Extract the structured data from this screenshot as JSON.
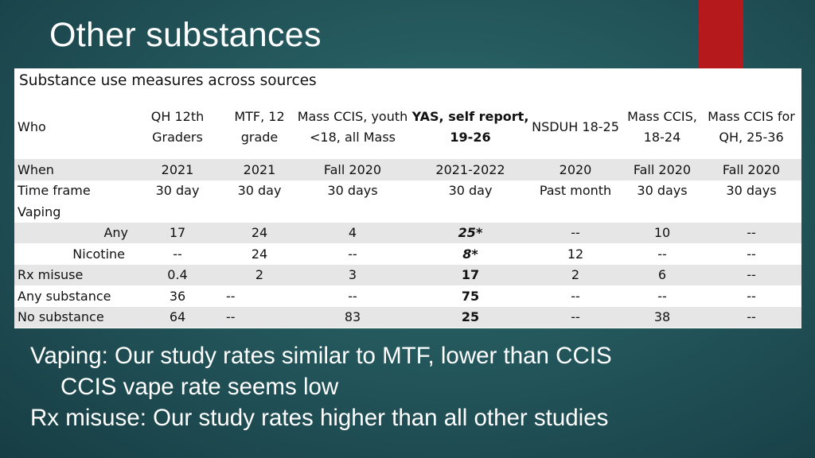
{
  "slide": {
    "title": "Other substances"
  },
  "table": {
    "caption": "Substance use measures across sources",
    "who_label": "Who",
    "columns": [
      {
        "line1": "QH 12th",
        "line2": "Graders",
        "bold": false
      },
      {
        "line1": "MTF, 12",
        "line2": "grade",
        "bold": false
      },
      {
        "line1": "Mass CCIS, youth",
        "line2": "<18, all Mass",
        "bold": false
      },
      {
        "line1": "YAS, self report,",
        "line2": "19-26",
        "bold": true
      },
      {
        "line1": "NSDUH 18-25",
        "line2": "",
        "bold": false
      },
      {
        "line1": "Mass CCIS,",
        "line2": "18-24",
        "bold": false
      },
      {
        "line1": "Mass CCIS for",
        "line2": "QH, 25-36",
        "bold": false
      }
    ],
    "rows": [
      {
        "label": "When",
        "values": [
          "2021",
          "2021",
          "Fall 2020",
          "2021-2022",
          "2020",
          "Fall 2020",
          "Fall 2020"
        ]
      },
      {
        "label": "Time frame",
        "values": [
          "30 day",
          "30 day",
          "30 days",
          "30 day",
          "Past month",
          "30 days",
          "30 days"
        ]
      },
      {
        "label": "Vaping",
        "values": [
          "",
          "",
          "",
          "",
          "",
          "",
          ""
        ]
      },
      {
        "label": "Any",
        "values": [
          "17",
          "24",
          "4",
          "25*",
          "--",
          "10",
          "--"
        ]
      },
      {
        "label": "Nicotine",
        "values": [
          "--",
          "24",
          "--",
          "8*",
          "12",
          "--",
          "--"
        ]
      },
      {
        "label": "Rx misuse",
        "values": [
          "0.4",
          "2",
          "3",
          "17",
          "2",
          "6",
          "--"
        ]
      },
      {
        "label": "Any substance",
        "values": [
          "36",
          "--",
          "--",
          "75",
          "--",
          "--",
          "--"
        ]
      },
      {
        "label": "No substance",
        "values": [
          "64",
          "--",
          "83",
          "25",
          "--",
          "38",
          "--"
        ]
      }
    ]
  },
  "notes": {
    "line1": "Vaping: Our study rates similar to MTF, lower than CCIS",
    "line2": "CCIS vape rate seems low",
    "line3": "Rx misuse: Our study rates higher than all other studies"
  },
  "colors": {
    "accent": "#b5191c",
    "background": "#23575c",
    "row_shade": "#e6e6e6"
  }
}
